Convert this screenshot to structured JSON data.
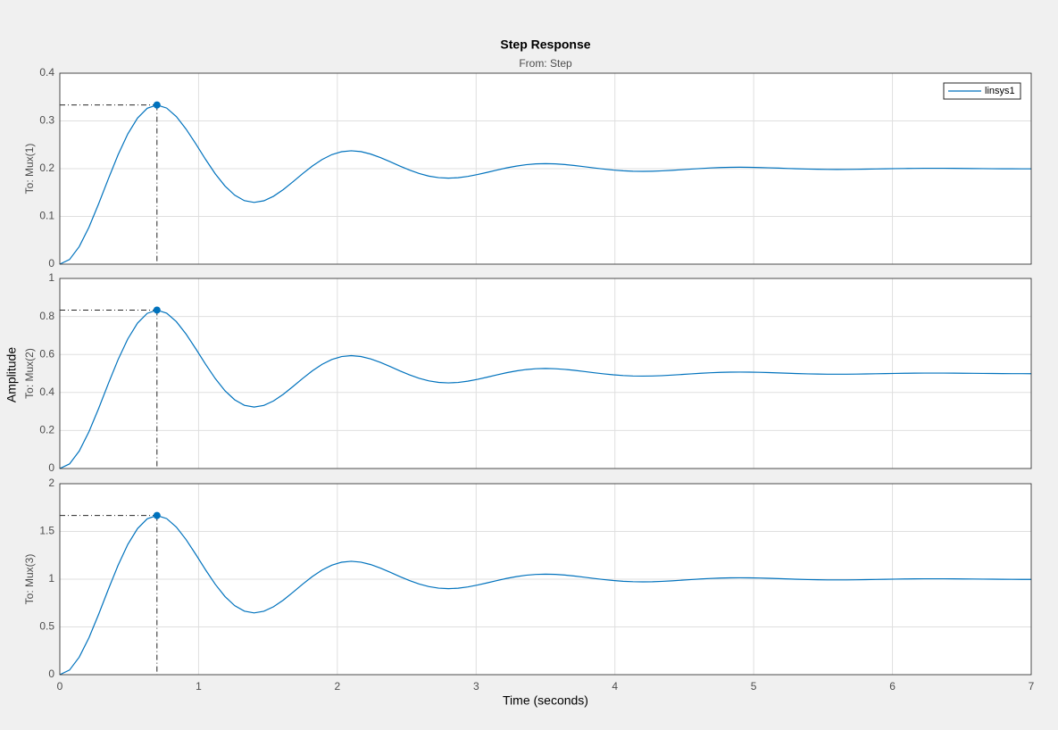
{
  "title": "Step Response",
  "subtitle": "From: Step",
  "ylabel": "Amplitude",
  "chart_data": [
    {
      "type": "line",
      "ylabel": "To: Mux(1)",
      "legend": "upper right",
      "grid": true,
      "x": [
        0,
        0.07,
        0.14,
        0.21,
        0.28,
        0.35,
        0.42,
        0.49,
        0.56,
        0.63,
        0.7,
        0.77,
        0.84,
        0.91,
        0.98,
        1.05,
        1.12,
        1.19,
        1.26,
        1.33,
        1.4,
        1.47,
        1.54,
        1.61,
        1.68,
        1.75,
        1.82,
        1.89,
        1.96,
        2.03,
        2.1,
        2.17,
        2.24,
        2.31,
        2.38,
        2.45,
        2.52,
        2.59,
        2.66,
        2.73,
        2.8,
        2.87,
        2.94,
        3.01,
        3.08,
        3.15,
        3.22,
        3.29,
        3.36,
        3.43,
        3.5,
        3.57,
        3.64,
        3.71,
        3.78,
        3.85,
        3.92,
        3.99,
        4.06,
        4.13,
        4.2,
        4.27,
        4.34,
        4.41,
        4.48,
        4.55,
        4.62,
        4.69,
        4.76,
        4.83,
        4.9,
        4.97,
        5.04,
        5.11,
        5.18,
        5.25,
        5.32,
        5.39,
        5.46,
        5.53,
        5.6,
        5.67,
        5.74,
        5.81,
        5.88,
        5.95,
        6.02,
        6.09,
        6.16,
        6.23,
        6.3,
        6.37,
        6.44,
        6.51,
        6.58,
        6.65,
        6.72,
        6.79,
        6.86,
        6.93,
        7.0
      ],
      "series": [
        {
          "name": "linsys1",
          "color": "#0072bd",
          "values": [
            0,
            0.0097,
            0.0368,
            0.0774,
            0.1266,
            0.1789,
            0.2292,
            0.2728,
            0.306,
            0.3265,
            0.3334,
            0.3269,
            0.309,
            0.2828,
            0.2519,
            0.2196,
            0.1893,
            0.1637,
            0.1446,
            0.133,
            0.1293,
            0.1327,
            0.1422,
            0.1561,
            0.1725,
            0.1896,
            0.2056,
            0.2192,
            0.2294,
            0.2355,
            0.2375,
            0.2357,
            0.2306,
            0.2233,
            0.2146,
            0.2055,
            0.197,
            0.1898,
            0.1844,
            0.1812,
            0.1801,
            0.1811,
            0.1838,
            0.1877,
            0.1923,
            0.1971,
            0.2016,
            0.2054,
            0.2083,
            0.21,
            0.2105,
            0.21,
            0.2086,
            0.2065,
            0.2041,
            0.2015,
            0.1992,
            0.1971,
            0.1956,
            0.1947,
            0.1944,
            0.1947,
            0.1954,
            0.1965,
            0.1978,
            0.1992,
            0.2004,
            0.2015,
            0.2023,
            0.2028,
            0.203,
            0.2028,
            0.2024,
            0.2018,
            0.2012,
            0.2004,
            0.1998,
            0.1992,
            0.1988,
            0.1985,
            0.1984,
            0.1985,
            0.1987,
            0.199,
            0.1994,
            0.1998,
            0.2001,
            0.2004,
            0.2006,
            0.2008,
            0.2008,
            0.2008,
            0.2007,
            0.2005,
            0.2003,
            0.2001,
            0.1999,
            0.1998,
            0.1997,
            0.1996,
            0.1996
          ]
        }
      ],
      "xlim": [
        0,
        7
      ],
      "xticks": [
        0,
        1,
        2,
        3,
        4,
        5,
        6,
        7
      ],
      "ylim": [
        0,
        0.4
      ],
      "yticks": [
        0,
        0.1,
        0.2,
        0.3,
        0.4
      ]
    },
    {
      "type": "line",
      "ylabel": "To: Mux(2)",
      "grid": true,
      "x": [
        0,
        0.07,
        0.14,
        0.21,
        0.28,
        0.35,
        0.42,
        0.49,
        0.56,
        0.63,
        0.7,
        0.77,
        0.84,
        0.91,
        0.98,
        1.05,
        1.12,
        1.19,
        1.26,
        1.33,
        1.4,
        1.47,
        1.54,
        1.61,
        1.68,
        1.75,
        1.82,
        1.89,
        1.96,
        2.03,
        2.1,
        2.17,
        2.24,
        2.31,
        2.38,
        2.45,
        2.52,
        2.59,
        2.66,
        2.73,
        2.8,
        2.87,
        2.94,
        3.01,
        3.08,
        3.15,
        3.22,
        3.29,
        3.36,
        3.43,
        3.5,
        3.57,
        3.64,
        3.71,
        3.78,
        3.85,
        3.92,
        3.99,
        4.06,
        4.13,
        4.2,
        4.27,
        4.34,
        4.41,
        4.48,
        4.55,
        4.62,
        4.69,
        4.76,
        4.83,
        4.9,
        4.97,
        5.04,
        5.11,
        5.18,
        5.25,
        5.32,
        5.39,
        5.46,
        5.53,
        5.6,
        5.67,
        5.74,
        5.81,
        5.88,
        5.95,
        6.02,
        6.09,
        6.16,
        6.23,
        6.3,
        6.37,
        6.44,
        6.51,
        6.58,
        6.65,
        6.72,
        6.79,
        6.86,
        6.93,
        7.0
      ],
      "series": [
        {
          "color": "#0072bd",
          "values": [
            0,
            0.0242,
            0.0921,
            0.1935,
            0.3165,
            0.4474,
            0.5731,
            0.682,
            0.7651,
            0.8164,
            0.8335,
            0.8173,
            0.7725,
            0.7071,
            0.6297,
            0.5491,
            0.4734,
            0.4092,
            0.3615,
            0.3326,
            0.3233,
            0.3319,
            0.3556,
            0.3903,
            0.4313,
            0.474,
            0.5141,
            0.5481,
            0.5735,
            0.5888,
            0.5937,
            0.5892,
            0.5766,
            0.5582,
            0.5365,
            0.5138,
            0.4925,
            0.4745,
            0.4611,
            0.453,
            0.4504,
            0.4528,
            0.4595,
            0.4692,
            0.4807,
            0.4927,
            0.504,
            0.5135,
            0.5207,
            0.5249,
            0.5263,
            0.525,
            0.5215,
            0.5164,
            0.5103,
            0.5039,
            0.4979,
            0.4929,
            0.4891,
            0.4868,
            0.4861,
            0.4868,
            0.4886,
            0.4914,
            0.4946,
            0.498,
            0.5011,
            0.5038,
            0.5058,
            0.507,
            0.5074,
            0.5071,
            0.5061,
            0.5046,
            0.5029,
            0.5011,
            0.4994,
            0.498,
            0.497,
            0.4963,
            0.4961,
            0.4963,
            0.4968,
            0.4976,
            0.4985,
            0.4995,
            0.5003,
            0.5011,
            0.5016,
            0.502,
            0.5021,
            0.502,
            0.5017,
            0.5013,
            0.5008,
            0.5003,
            0.4999,
            0.4995,
            0.4992,
            0.499,
            0.4989
          ]
        }
      ],
      "xlim": [
        0,
        7
      ],
      "xticks": [
        0,
        1,
        2,
        3,
        4,
        5,
        6,
        7
      ],
      "ylim": [
        0,
        1
      ],
      "yticks": [
        0,
        0.2,
        0.4,
        0.6,
        0.8,
        1
      ]
    },
    {
      "type": "line",
      "ylabel": "To: Mux(3)",
      "xlabel": "Time (seconds)",
      "grid": true,
      "x": [
        0,
        0.07,
        0.14,
        0.21,
        0.28,
        0.35,
        0.42,
        0.49,
        0.56,
        0.63,
        0.7,
        0.77,
        0.84,
        0.91,
        0.98,
        1.05,
        1.12,
        1.19,
        1.26,
        1.33,
        1.4,
        1.47,
        1.54,
        1.61,
        1.68,
        1.75,
        1.82,
        1.89,
        1.96,
        2.03,
        2.1,
        2.17,
        2.24,
        2.31,
        2.38,
        2.45,
        2.52,
        2.59,
        2.66,
        2.73,
        2.8,
        2.87,
        2.94,
        3.01,
        3.08,
        3.15,
        3.22,
        3.29,
        3.36,
        3.43,
        3.5,
        3.57,
        3.64,
        3.71,
        3.78,
        3.85,
        3.92,
        3.99,
        4.06,
        4.13,
        4.2,
        4.27,
        4.34,
        4.41,
        4.48,
        4.55,
        4.62,
        4.69,
        4.76,
        4.83,
        4.9,
        4.97,
        5.04,
        5.11,
        5.18,
        5.25,
        5.32,
        5.39,
        5.46,
        5.53,
        5.6,
        5.67,
        5.74,
        5.81,
        5.88,
        5.95,
        6.02,
        6.09,
        6.16,
        6.23,
        6.3,
        6.37,
        6.44,
        6.51,
        6.58,
        6.65,
        6.72,
        6.79,
        6.86,
        6.93,
        7.0
      ],
      "series": [
        {
          "color": "#0072bd",
          "values": [
            0,
            0.0483,
            0.1841,
            0.387,
            0.6329,
            0.8947,
            1.1461,
            1.364,
            1.5302,
            1.6327,
            1.667,
            1.6345,
            1.545,
            1.4141,
            1.2593,
            1.0981,
            0.9467,
            0.8184,
            0.7229,
            0.6652,
            0.6465,
            0.6637,
            0.7112,
            0.7805,
            0.8626,
            0.948,
            1.0282,
            1.0962,
            1.1469,
            1.1775,
            1.1874,
            1.1783,
            1.1531,
            1.1164,
            1.0729,
            1.0276,
            0.985,
            0.949,
            0.9221,
            0.9059,
            0.9007,
            0.9055,
            0.9189,
            0.9383,
            0.9614,
            0.9854,
            1.0079,
            1.027,
            1.0413,
            1.0498,
            1.0526,
            1.05,
            1.043,
            1.0327,
            1.0205,
            1.0077,
            0.9958,
            0.9857,
            0.9781,
            0.9736,
            0.9721,
            0.9735,
            0.9772,
            0.9827,
            0.9892,
            0.9959,
            1.0022,
            1.0076,
            1.0116,
            1.014,
            1.0148,
            1.0141,
            1.0121,
            1.0092,
            1.0058,
            1.0022,
            0.9988,
            0.996,
            0.9939,
            0.9926,
            0.9922,
            0.9926,
            0.9936,
            0.9952,
            0.997,
            0.9989,
            1.0006,
            1.0021,
            1.0032,
            1.0039,
            1.0042,
            1.004,
            1.0034,
            1.0026,
            1.0016,
            1.0006,
            0.9997,
            0.9989,
            0.9983,
            0.9979,
            0.9978
          ]
        }
      ],
      "xlim": [
        0,
        7
      ],
      "xticks": [
        0,
        1,
        2,
        3,
        4,
        5,
        6,
        7
      ],
      "ylim": [
        0,
        2
      ],
      "yticks": [
        0,
        0.5,
        1,
        1.5,
        2
      ]
    }
  ]
}
